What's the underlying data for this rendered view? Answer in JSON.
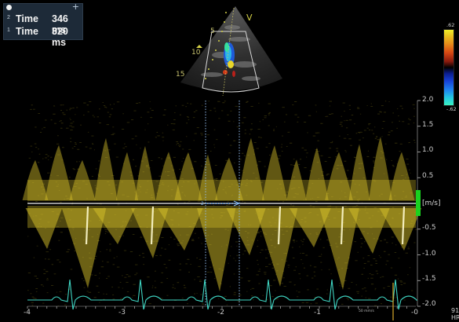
{
  "measurements": [
    {
      "index": "2",
      "label": "Time",
      "value": "346 ms"
    },
    {
      "index": "1",
      "label": "Time",
      "value": "320 ms"
    }
  ],
  "sector": {
    "orientation_marker": "V",
    "depth_labels": [
      "5",
      "10",
      "15"
    ]
  },
  "color_scale": {
    "top_value": ".62",
    "bottom_value": "-.62"
  },
  "spectrum": {
    "velocity_unit": "[m/s]",
    "y_ticks": [
      "2.0",
      "1.5",
      "1.0",
      "0.5",
      "-0.5",
      "-1.0",
      "-1.5",
      "-2.0"
    ],
    "x_ticks": [
      "-4",
      "-3",
      "-2",
      "-1",
      "-0"
    ],
    "sweep_speed": "50 mm/s"
  },
  "heart_rate": {
    "value": "91",
    "unit": "HR"
  },
  "colors": {
    "spectrum": "#d8c22a",
    "ecg": "#3fd6c4",
    "caliper": "#8fb8e8",
    "baseline_marker": "#19d21f"
  }
}
